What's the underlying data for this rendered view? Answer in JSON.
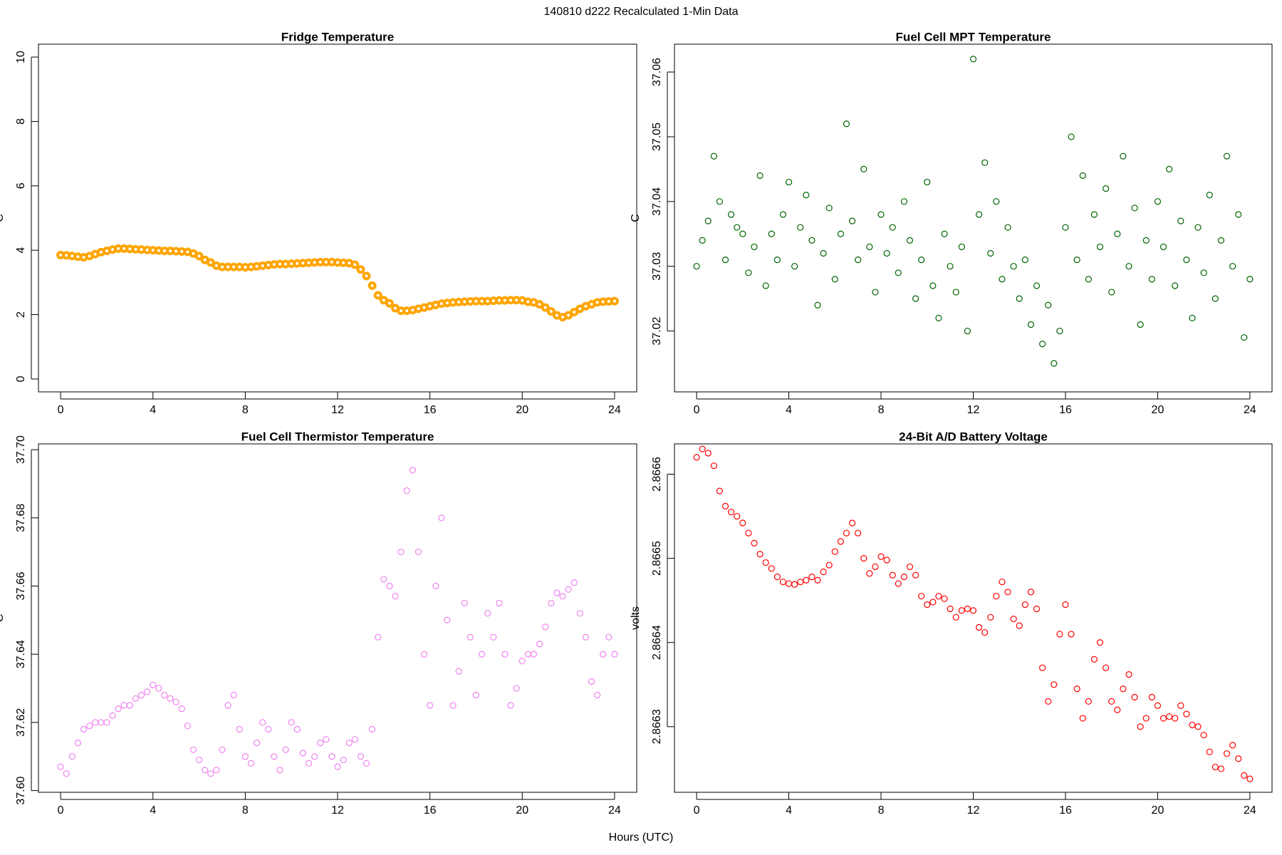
{
  "title": "140810   d222   Recalculated 1-Min Data",
  "xlabel": "Hours (UTC)",
  "chart_data": [
    {
      "type": "scatter",
      "title": "Fridge Temperature",
      "ylabel": "C",
      "color": "#ffa500",
      "xlim": [
        -0.96,
        24.96
      ],
      "xticks": [
        0,
        4,
        8,
        12,
        16,
        20,
        24
      ],
      "ylim": [
        -0.4,
        10.4
      ],
      "yticks": [
        0,
        2,
        4,
        6,
        8,
        10
      ],
      "x": [
        0,
        0.25,
        0.5,
        0.75,
        1,
        1.25,
        1.5,
        1.75,
        2,
        2.25,
        2.5,
        2.75,
        3,
        3.25,
        3.5,
        3.75,
        4,
        4.25,
        4.5,
        4.75,
        5,
        5.25,
        5.5,
        5.75,
        6,
        6.25,
        6.5,
        6.75,
        7,
        7.25,
        7.5,
        7.75,
        8,
        8.25,
        8.5,
        8.75,
        9,
        9.25,
        9.5,
        9.75,
        10,
        10.25,
        10.5,
        10.75,
        11,
        11.25,
        11.5,
        11.75,
        12,
        12.25,
        12.5,
        12.75,
        13,
        13.25,
        13.5,
        13.75,
        14,
        14.25,
        14.5,
        14.75,
        15,
        15.25,
        15.5,
        15.75,
        16,
        16.25,
        16.5,
        16.75,
        17,
        17.25,
        17.5,
        17.75,
        18,
        18.25,
        18.5,
        18.75,
        19,
        19.25,
        19.5,
        19.75,
        20,
        20.25,
        20.5,
        20.75,
        21,
        21.25,
        21.5,
        21.75,
        22,
        22.25,
        22.5,
        22.75,
        23,
        23.25,
        23.5,
        23.75,
        24
      ],
      "values": [
        3.85,
        3.84,
        3.82,
        3.8,
        3.78,
        3.82,
        3.88,
        3.94,
        3.98,
        4.02,
        4.05,
        4.05,
        4.04,
        4.03,
        4.02,
        4.01,
        4.0,
        3.99,
        3.98,
        3.98,
        3.97,
        3.96,
        3.95,
        3.9,
        3.82,
        3.7,
        3.62,
        3.52,
        3.48,
        3.48,
        3.48,
        3.48,
        3.47,
        3.48,
        3.5,
        3.52,
        3.54,
        3.56,
        3.57,
        3.57,
        3.58,
        3.59,
        3.6,
        3.61,
        3.62,
        3.63,
        3.63,
        3.63,
        3.62,
        3.61,
        3.6,
        3.55,
        3.4,
        3.2,
        2.9,
        2.6,
        2.45,
        2.35,
        2.2,
        2.12,
        2.12,
        2.14,
        2.18,
        2.22,
        2.26,
        2.3,
        2.34,
        2.36,
        2.38,
        2.39,
        2.4,
        2.41,
        2.42,
        2.42,
        2.42,
        2.43,
        2.44,
        2.44,
        2.45,
        2.45,
        2.44,
        2.4,
        2.38,
        2.32,
        2.22,
        2.1,
        1.98,
        1.92,
        1.98,
        2.08,
        2.18,
        2.26,
        2.32,
        2.38,
        2.4,
        2.41,
        2.42
      ]
    },
    {
      "type": "scatter",
      "title": "Fuel Cell MPT Temperature",
      "ylabel": "C",
      "color": "#006400",
      "xlim": [
        -0.96,
        24.96
      ],
      "xticks": [
        0,
        4,
        8,
        12,
        16,
        20,
        24
      ],
      "ylim": [
        37.0106,
        37.0643
      ],
      "yticks": [
        37.02,
        37.03,
        37.04,
        37.05,
        37.06
      ],
      "x": [
        0,
        0.25,
        0.5,
        0.75,
        1,
        1.25,
        1.5,
        1.75,
        2,
        2.25,
        2.5,
        2.75,
        3,
        3.25,
        3.5,
        3.75,
        4,
        4.25,
        4.5,
        4.75,
        5,
        5.25,
        5.5,
        5.75,
        6,
        6.25,
        6.5,
        6.75,
        7,
        7.25,
        7.5,
        7.75,
        8,
        8.25,
        8.5,
        8.75,
        9,
        9.25,
        9.5,
        9.75,
        10,
        10.25,
        10.5,
        10.75,
        11,
        11.25,
        11.5,
        11.75,
        12,
        12.25,
        12.5,
        12.75,
        13,
        13.25,
        13.5,
        13.75,
        14,
        14.25,
        14.5,
        14.75,
        15,
        15.25,
        15.5,
        15.75,
        16,
        16.25,
        16.5,
        16.75,
        17,
        17.25,
        17.5,
        17.75,
        18,
        18.25,
        18.5,
        18.75,
        19,
        19.25,
        19.5,
        19.75,
        20,
        20.25,
        20.5,
        20.75,
        21,
        21.25,
        21.5,
        21.75,
        22,
        22.25,
        22.5,
        22.75,
        23,
        23.25,
        23.5,
        23.75,
        24
      ],
      "values": [
        37.03,
        37.034,
        37.037,
        37.047,
        37.04,
        37.031,
        37.038,
        37.036,
        37.035,
        37.029,
        37.033,
        37.044,
        37.027,
        37.035,
        37.031,
        37.038,
        37.043,
        37.03,
        37.036,
        37.041,
        37.034,
        37.024,
        37.032,
        37.039,
        37.028,
        37.035,
        37.052,
        37.037,
        37.031,
        37.045,
        37.033,
        37.026,
        37.038,
        37.032,
        37.036,
        37.029,
        37.04,
        37.034,
        37.025,
        37.031,
        37.043,
        37.027,
        37.022,
        37.035,
        37.03,
        37.026,
        37.033,
        37.02,
        37.062,
        37.038,
        37.046,
        37.032,
        37.04,
        37.028,
        37.036,
        37.03,
        37.025,
        37.031,
        37.021,
        37.027,
        37.018,
        37.024,
        37.015,
        37.02,
        37.036,
        37.05,
        37.031,
        37.044,
        37.028,
        37.038,
        37.033,
        37.042,
        37.026,
        37.035,
        37.047,
        37.03,
        37.039,
        37.021,
        37.034,
        37.028,
        37.04,
        37.033,
        37.045,
        37.027,
        37.037,
        37.031,
        37.022,
        37.036,
        37.029,
        37.041,
        37.025,
        37.034,
        37.047,
        37.03,
        37.038,
        37.019,
        37.028
      ]
    },
    {
      "type": "scatter",
      "title": "Fuel Cell Thermistor Temperature",
      "ylabel": "C",
      "color": "#ee82ee",
      "xlim": [
        -0.96,
        24.96
      ],
      "xticks": [
        0,
        4,
        8,
        12,
        16,
        20,
        24
      ],
      "ylim": [
        37.5995,
        37.7017
      ],
      "yticks": [
        {
          "value": 37.6,
          "label": "37.60"
        },
        37.62,
        37.64,
        37.66,
        37.68,
        {
          "value": 37.7,
          "label": "37.70"
        }
      ],
      "x": [
        0,
        0.25,
        0.5,
        0.75,
        1,
        1.25,
        1.5,
        1.75,
        2,
        2.25,
        2.5,
        2.75,
        3,
        3.25,
        3.5,
        3.75,
        4,
        4.25,
        4.5,
        4.75,
        5,
        5.25,
        5.5,
        5.75,
        6,
        6.25,
        6.5,
        6.75,
        7,
        7.25,
        7.5,
        7.75,
        8,
        8.25,
        8.5,
        8.75,
        9,
        9.25,
        9.5,
        9.75,
        10,
        10.25,
        10.5,
        10.75,
        11,
        11.25,
        11.5,
        11.75,
        12,
        12.25,
        12.5,
        12.75,
        13,
        13.25,
        13.5,
        13.75,
        14,
        14.25,
        14.5,
        14.75,
        15,
        15.25,
        15.5,
        15.75,
        16,
        16.25,
        16.5,
        16.75,
        17,
        17.25,
        17.5,
        17.75,
        18,
        18.25,
        18.5,
        18.75,
        19,
        19.25,
        19.5,
        19.75,
        20,
        20.25,
        20.5,
        20.75,
        21,
        21.25,
        21.5,
        21.75,
        22,
        22.25,
        22.5,
        22.75,
        23,
        23.25,
        23.5,
        23.75,
        24
      ],
      "values": [
        37.607,
        37.605,
        37.61,
        37.614,
        37.618,
        37.619,
        37.62,
        37.62,
        37.62,
        37.622,
        37.624,
        37.625,
        37.625,
        37.627,
        37.628,
        37.629,
        37.631,
        37.63,
        37.628,
        37.627,
        37.626,
        37.624,
        37.619,
        37.612,
        37.609,
        37.606,
        37.605,
        37.606,
        37.612,
        37.625,
        37.628,
        37.618,
        37.61,
        37.608,
        37.614,
        37.62,
        37.618,
        37.61,
        37.606,
        37.612,
        37.62,
        37.618,
        37.611,
        37.608,
        37.61,
        37.614,
        37.615,
        37.61,
        37.607,
        37.609,
        37.614,
        37.615,
        37.61,
        37.608,
        37.618,
        37.645,
        37.662,
        37.66,
        37.657,
        37.67,
        37.688,
        37.694,
        37.67,
        37.64,
        37.625,
        37.66,
        37.68,
        37.65,
        37.625,
        37.635,
        37.655,
        37.645,
        37.628,
        37.64,
        37.652,
        37.645,
        37.655,
        37.64,
        37.625,
        37.63,
        37.638,
        37.64,
        37.64,
        37.643,
        37.648,
        37.655,
        37.658,
        37.657,
        37.659,
        37.661,
        37.652,
        37.645,
        37.632,
        37.628,
        37.64,
        37.645,
        37.64
      ]
    },
    {
      "type": "scatter",
      "title": "24-Bit A/D Battery Voltage",
      "ylabel": "volts",
      "color": "#ff0000",
      "xlim": [
        -0.96,
        24.96
      ],
      "xticks": [
        0,
        4,
        8,
        12,
        16,
        20,
        24
      ],
      "ylim": [
        2.866222,
        2.866636
      ],
      "yticks": [
        2.8663,
        2.8664,
        2.8665,
        2.8666
      ],
      "x": [
        0,
        0.25,
        0.5,
        0.75,
        1,
        1.25,
        1.5,
        1.75,
        2,
        2.25,
        2.5,
        2.75,
        3,
        3.25,
        3.5,
        3.75,
        4,
        4.25,
        4.5,
        4.75,
        5,
        5.25,
        5.5,
        5.75,
        6,
        6.25,
        6.5,
        6.75,
        7,
        7.25,
        7.5,
        7.75,
        8,
        8.25,
        8.5,
        8.75,
        9,
        9.25,
        9.5,
        9.75,
        10,
        10.25,
        10.5,
        10.75,
        11,
        11.25,
        11.5,
        11.75,
        12,
        12.25,
        12.5,
        12.75,
        13,
        13.25,
        13.5,
        13.75,
        14,
        14.25,
        14.5,
        14.75,
        15,
        15.25,
        15.5,
        15.75,
        16,
        16.25,
        16.5,
        16.75,
        17,
        17.25,
        17.5,
        17.75,
        18,
        18.25,
        18.5,
        18.75,
        19,
        19.25,
        19.5,
        19.75,
        20,
        20.25,
        20.5,
        20.75,
        21,
        21.25,
        21.5,
        21.75,
        22,
        22.25,
        22.5,
        22.75,
        23,
        23.25,
        23.5,
        23.75,
        24
      ],
      "values": [
        2.86662,
        2.86663,
        2.866625,
        2.86661,
        2.86658,
        2.866562,
        2.866555,
        2.86655,
        2.866542,
        2.86653,
        2.866518,
        2.866505,
        2.866495,
        2.866488,
        2.866478,
        2.866472,
        2.86647,
        2.866469,
        2.866472,
        2.866474,
        2.866478,
        2.866474,
        2.866484,
        2.866492,
        2.866508,
        2.86652,
        2.86653,
        2.866542,
        2.86653,
        2.8665,
        2.866482,
        2.86649,
        2.866502,
        2.866498,
        2.86648,
        2.86647,
        2.866478,
        2.86649,
        2.86648,
        2.866455,
        2.866445,
        2.866448,
        2.866455,
        2.866452,
        2.86644,
        2.86643,
        2.866438,
        2.86644,
        2.866438,
        2.866418,
        2.866412,
        2.86643,
        2.866455,
        2.866472,
        2.86646,
        2.866428,
        2.86642,
        2.866445,
        2.86646,
        2.86644,
        2.86637,
        2.86633,
        2.86635,
        2.86641,
        2.866445,
        2.86641,
        2.866345,
        2.86631,
        2.86633,
        2.86638,
        2.8664,
        2.86637,
        2.86633,
        2.86632,
        2.866345,
        2.866362,
        2.866335,
        2.8663,
        2.86631,
        2.866335,
        2.866325,
        2.86631,
        2.866312,
        2.86631,
        2.866325,
        2.866315,
        2.866302,
        2.8663,
        2.86629,
        2.86627,
        2.866252,
        2.86625,
        2.866268,
        2.866278,
        2.866262,
        2.866242,
        2.866238
      ]
    }
  ]
}
